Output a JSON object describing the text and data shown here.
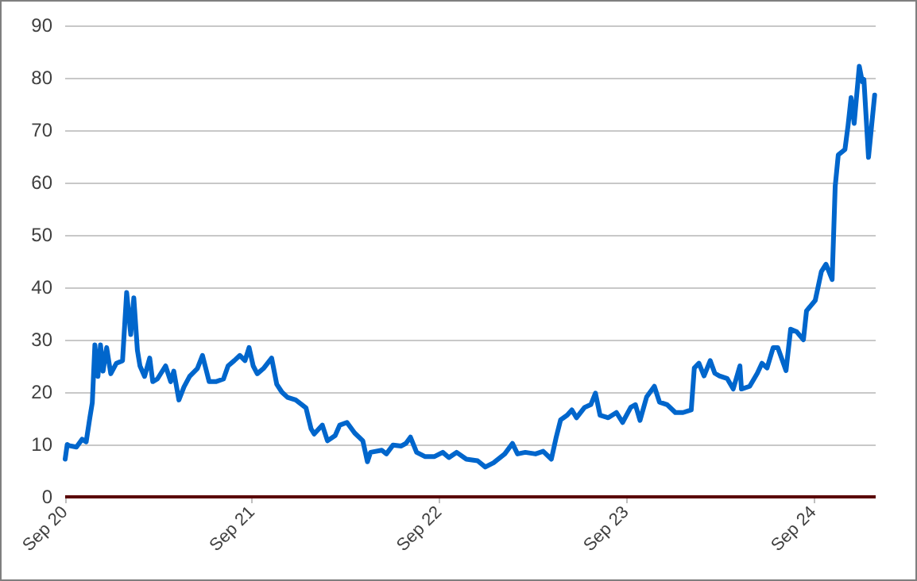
{
  "chart_data": {
    "type": "line",
    "marker": "none",
    "line_style": "solid",
    "grid": "y",
    "xlim": [
      "2020-09-01",
      "2024-12-31"
    ],
    "xticks": [
      {
        "value": "2020-09-01",
        "label": "Sep 20"
      },
      {
        "value": "2021-09-01",
        "label": "Sep 21"
      },
      {
        "value": "2022-09-01",
        "label": "Sep 22"
      },
      {
        "value": "2023-09-01",
        "label": "Sep 23"
      },
      {
        "value": "2024-09-01",
        "label": "Sep 24"
      }
    ],
    "ylim": [
      0,
      90
    ],
    "yticks": [
      0,
      10,
      20,
      30,
      40,
      50,
      60,
      70,
      80,
      90
    ],
    "series": [
      {
        "color": "#0066cc",
        "x": [
          "2020-09-01",
          "2020-09-05",
          "2020-09-08",
          "2020-09-23",
          "2020-10-04",
          "2020-10-12",
          "2020-10-19",
          "2020-10-24",
          "2020-10-29",
          "2020-11-04",
          "2020-11-09",
          "2020-11-14",
          "2020-11-21",
          "2020-11-29",
          "2020-12-10",
          "2020-12-22",
          "2020-12-30",
          "2021-01-07",
          "2021-01-13",
          "2021-01-20",
          "2021-01-25",
          "2021-02-03",
          "2021-02-13",
          "2021-02-19",
          "2021-02-28",
          "2021-03-16",
          "2021-03-26",
          "2021-04-01",
          "2021-04-11",
          "2021-04-21",
          "2021-05-02",
          "2021-05-17",
          "2021-05-27",
          "2021-06-09",
          "2021-06-22",
          "2021-07-07",
          "2021-07-16",
          "2021-07-28",
          "2021-08-08",
          "2021-08-18",
          "2021-08-26",
          "2021-09-03",
          "2021-09-11",
          "2021-09-23",
          "2021-10-09",
          "2021-10-19",
          "2021-10-29",
          "2021-11-09",
          "2021-11-25",
          "2021-12-15",
          "2021-12-25",
          "2021-12-31",
          "2022-01-16",
          "2022-01-26",
          "2022-02-10",
          "2022-02-19",
          "2022-03-05",
          "2022-03-20",
          "2022-04-05",
          "2022-04-14",
          "2022-04-20",
          "2022-05-12",
          "2022-05-21",
          "2022-06-03",
          "2022-06-19",
          "2022-06-28",
          "2022-07-07",
          "2022-07-19",
          "2022-08-04",
          "2022-08-23",
          "2022-09-08",
          "2022-09-20",
          "2022-10-05",
          "2022-10-24",
          "2022-11-15",
          "2022-11-30",
          "2022-12-16",
          "2023-01-07",
          "2023-01-22",
          "2023-02-01",
          "2023-02-16",
          "2023-03-08",
          "2023-03-23",
          "2023-04-08",
          "2023-04-17",
          "2023-04-26",
          "2023-05-09",
          "2023-05-18",
          "2023-05-27",
          "2023-06-12",
          "2023-06-24",
          "2023-07-03",
          "2023-07-12",
          "2023-07-28",
          "2023-08-13",
          "2023-08-25",
          "2023-09-10",
          "2023-09-19",
          "2023-09-28",
          "2023-10-11",
          "2023-10-26",
          "2023-11-05",
          "2023-11-20",
          "2023-12-06",
          "2023-12-21",
          "2024-01-06",
          "2024-01-12",
          "2024-01-21",
          "2024-01-31",
          "2024-02-12",
          "2024-02-21",
          "2024-03-01",
          "2024-03-16",
          "2024-03-28",
          "2024-04-10",
          "2024-04-13",
          "2024-04-29",
          "2024-05-14",
          "2024-05-23",
          "2024-06-02",
          "2024-06-14",
          "2024-06-23",
          "2024-07-09",
          "2024-07-18",
          "2024-07-30",
          "2024-08-12",
          "2024-08-18",
          "2024-09-04",
          "2024-09-16",
          "2024-09-25",
          "2024-10-07",
          "2024-10-13",
          "2024-10-19",
          "2024-11-01",
          "2024-11-07",
          "2024-11-13",
          "2024-11-19",
          "2024-11-29",
          "2024-12-05",
          "2024-12-08",
          "2024-12-17",
          "2024-12-23",
          "2024-12-29"
        ],
        "values": [
          7.2,
          10,
          9.8,
          9.5,
          11,
          10.5,
          15,
          18,
          29,
          23,
          29,
          24,
          28.5,
          23.5,
          25.5,
          26,
          39,
          31,
          38,
          28,
          25,
          23,
          26.5,
          22,
          22.5,
          25,
          22,
          24,
          18.5,
          21,
          23,
          24.5,
          27,
          22,
          22,
          22.5,
          25,
          26,
          27,
          26,
          28.5,
          25,
          23.5,
          24.5,
          26.5,
          21.5,
          20,
          19,
          18.5,
          17,
          13,
          12,
          13.7,
          10.7,
          11.7,
          13.7,
          14.2,
          12.2,
          10.7,
          6.7,
          8.5,
          8.9,
          8.2,
          9.9,
          9.7,
          10.2,
          11.4,
          8.5,
          7.7,
          7.7,
          8.5,
          7.5,
          8.5,
          7.2,
          6.9,
          5.7,
          6.5,
          8.2,
          10.2,
          8.2,
          8.5,
          8.2,
          8.7,
          7.2,
          11.2,
          14.7,
          15.6,
          16.6,
          15.1,
          17.1,
          17.6,
          19.8,
          15.6,
          15.1,
          16.1,
          14.2,
          17.1,
          17.6,
          14.6,
          19.1,
          21.1,
          18.1,
          17.6,
          16.1,
          16.1,
          16.6,
          24.6,
          25.5,
          23.1,
          26,
          23.6,
          23.1,
          22.6,
          20.6,
          25,
          20.6,
          21.1,
          23.6,
          25.5,
          24.6,
          28.5,
          28.5,
          24.1,
          32,
          31.5,
          30,
          35.5,
          37.5,
          43,
          44.4,
          41.5,
          59.3,
          65.3,
          66.3,
          70.8,
          76.2,
          71.3,
          82.2,
          79.2,
          79.7,
          64.8,
          70.8,
          76.7
        ]
      }
    ]
  }
}
